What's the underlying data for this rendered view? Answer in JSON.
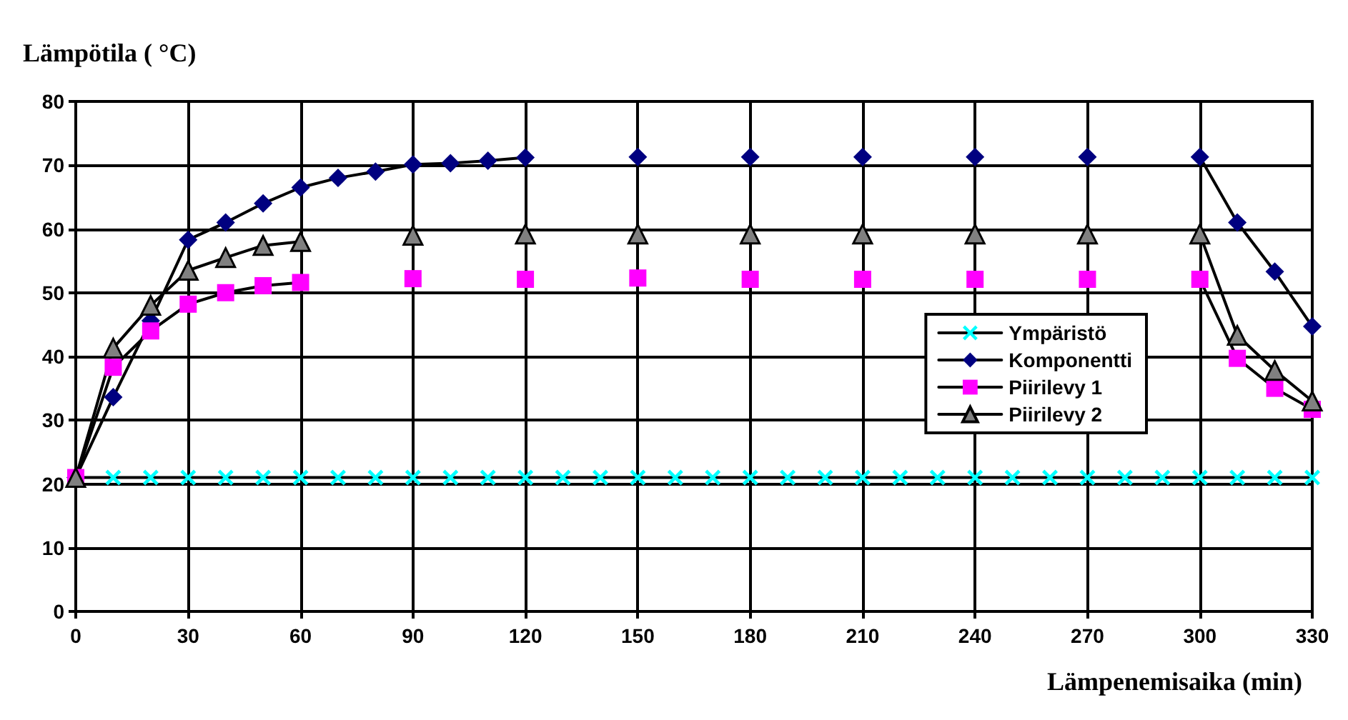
{
  "chart_data": {
    "type": "line",
    "xlabel": "Lämpenemisaika (min)",
    "ylabel": "Lämpötila ( °C)",
    "x": [
      0,
      10,
      20,
      30,
      40,
      50,
      60,
      70,
      80,
      90,
      100,
      110,
      120,
      130,
      140,
      150,
      160,
      170,
      180,
      190,
      200,
      210,
      220,
      230,
      240,
      250,
      260,
      270,
      280,
      290,
      300,
      310,
      320,
      330
    ],
    "series": [
      {
        "name": "Ympäristö",
        "color": "#00ffff",
        "marker": "cross",
        "values": [
          21,
          21,
          21,
          21,
          21,
          21,
          21,
          21,
          21,
          21,
          21,
          21,
          21,
          21,
          21,
          21,
          21,
          21,
          21,
          21,
          21,
          21,
          21,
          21,
          21,
          21,
          21,
          21,
          21,
          21,
          21,
          21,
          21,
          21
        ]
      },
      {
        "name": "Komponentti",
        "color": "#000080",
        "marker": "diamond",
        "values": [
          21,
          33.6,
          45.6,
          58.3,
          61,
          64,
          66.5,
          68,
          69,
          70.1,
          70.3,
          70.7,
          71.2,
          null,
          null,
          71.3,
          null,
          null,
          71.3,
          null,
          null,
          71.3,
          null,
          null,
          71.3,
          null,
          null,
          71.3,
          null,
          null,
          71.3,
          61,
          53.3,
          44.7
        ]
      },
      {
        "name": "Piirilevy 1",
        "color": "#ff00ff",
        "marker": "square",
        "values": [
          21,
          38.3,
          44,
          48.2,
          50,
          51.1,
          51.6,
          null,
          null,
          52.2,
          null,
          null,
          52.1,
          null,
          null,
          52.3,
          null,
          null,
          52.1,
          null,
          null,
          52.1,
          null,
          null,
          52.1,
          null,
          null,
          52.1,
          null,
          null,
          52.1,
          39.7,
          35,
          31.7
        ]
      },
      {
        "name": "Piirilevy 2",
        "color": "#808080",
        "marker": "triangle",
        "values": [
          21,
          41.3,
          48,
          53.5,
          55.5,
          57.4,
          58,
          null,
          null,
          59,
          null,
          null,
          59.2,
          null,
          null,
          59.2,
          null,
          null,
          59.2,
          null,
          null,
          59.2,
          null,
          null,
          59.2,
          null,
          null,
          59.2,
          null,
          null,
          59.2,
          43.3,
          37.8,
          33
        ]
      }
    ],
    "xlim": [
      0,
      330
    ],
    "xticks": [
      0,
      30,
      60,
      90,
      120,
      150,
      180,
      210,
      240,
      270,
      300,
      330
    ],
    "ylim": [
      0,
      80
    ],
    "yticks": [
      0,
      10,
      20,
      30,
      40,
      50,
      60,
      70,
      80
    ],
    "grid": true,
    "legend": "right",
    "line_style": "solid"
  }
}
